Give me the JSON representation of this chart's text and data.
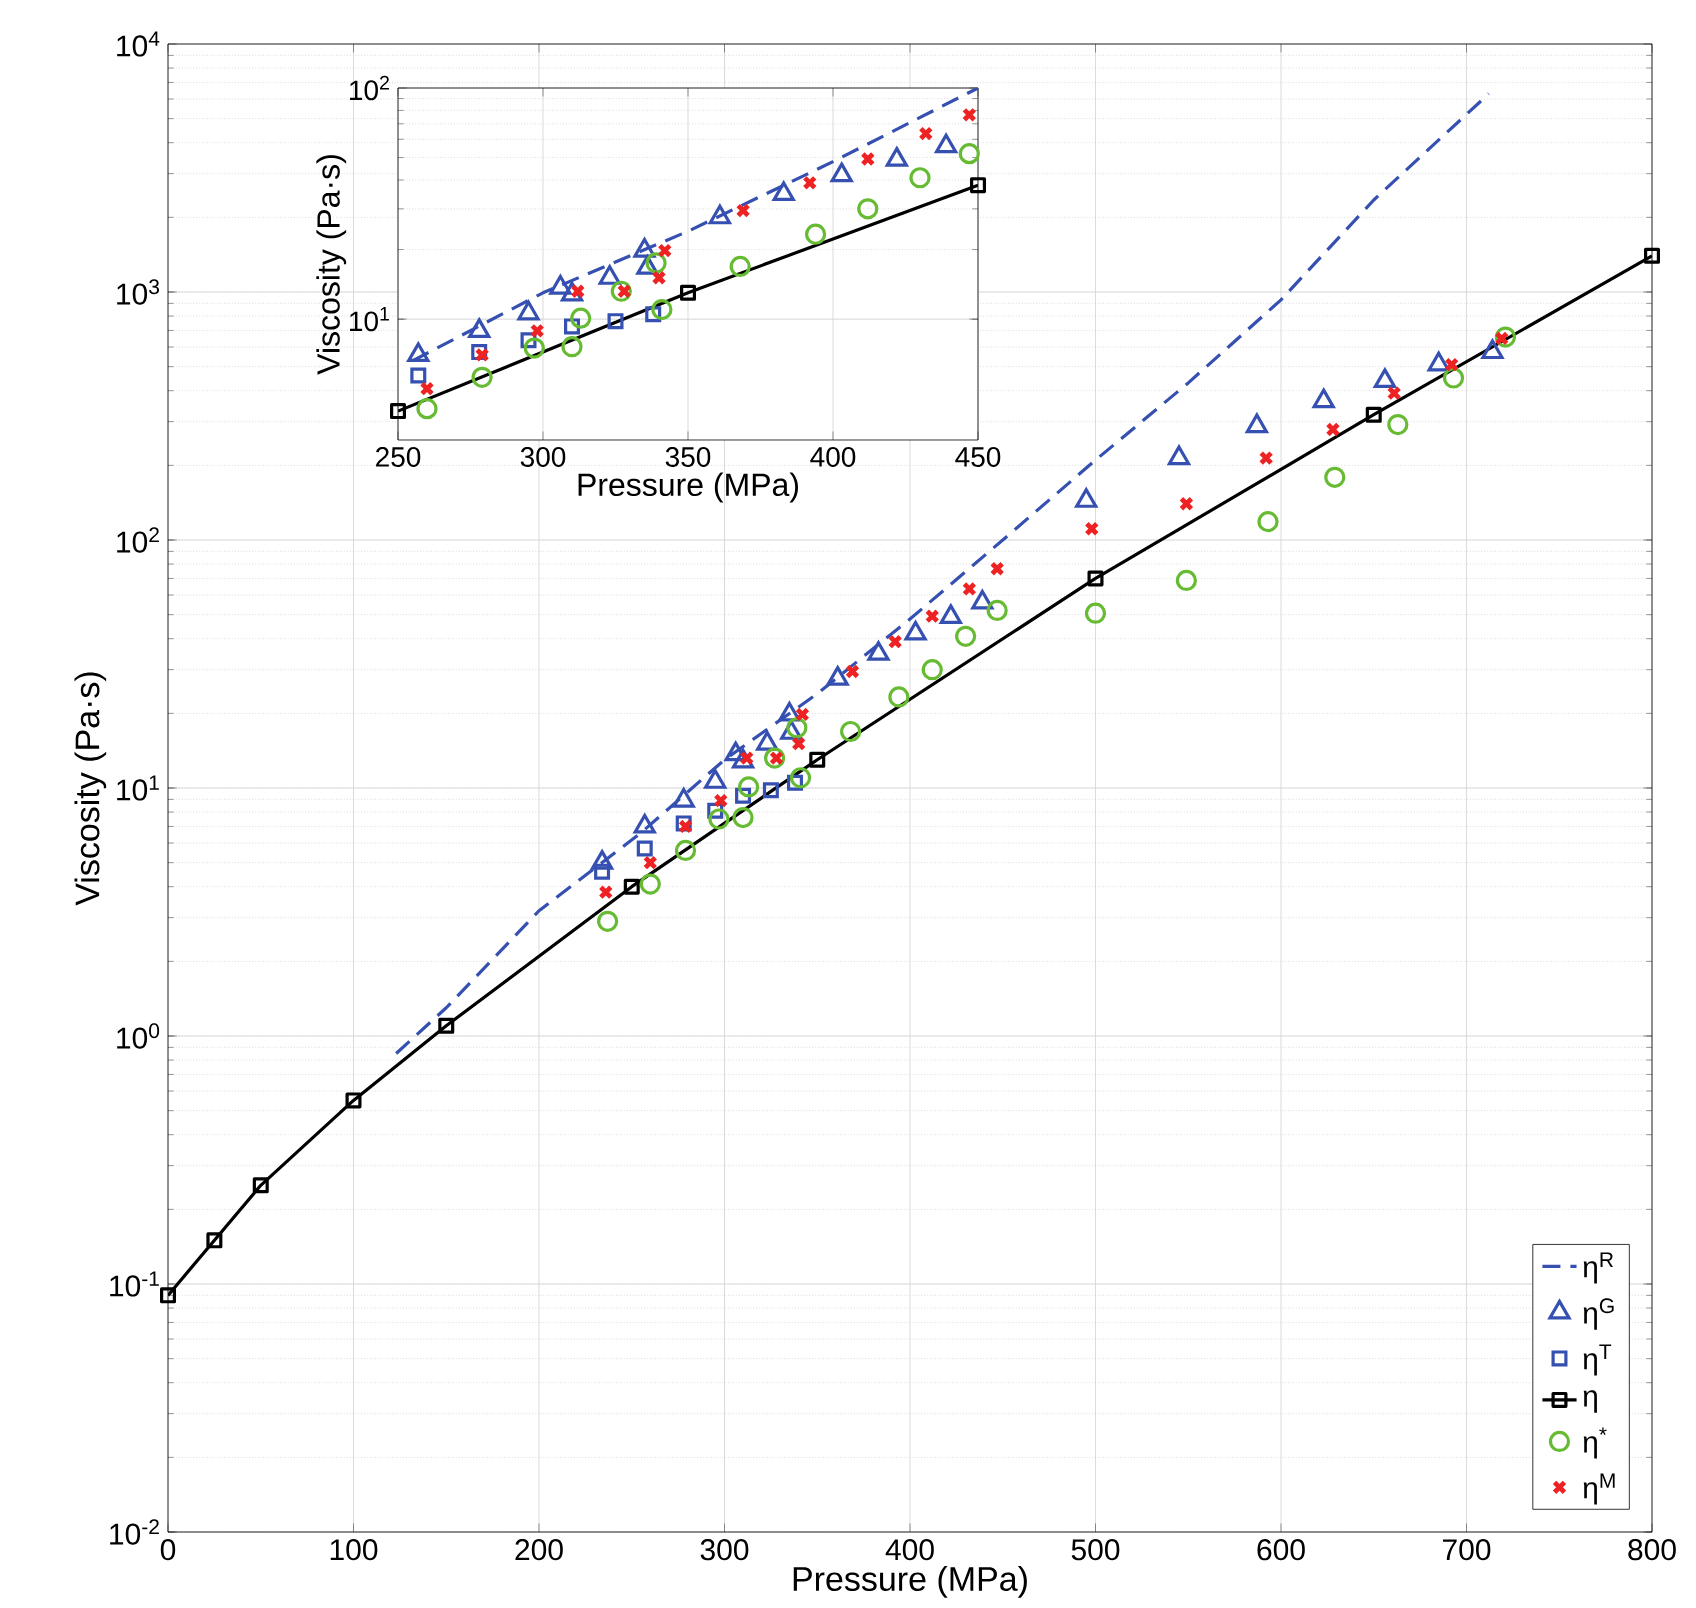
{
  "chart_data": [
    {
      "type": "scatter",
      "xlabel": "Pressure (MPa)",
      "ylabel": "Viscosity (Pa·s)",
      "log": "y",
      "grid": true,
      "legend": "bottom right",
      "xlim": [
        0,
        800
      ],
      "xticks": [
        0,
        100,
        200,
        300,
        400,
        500,
        600,
        700,
        800
      ],
      "ylim": [
        0.01,
        10000
      ],
      "yticks": [
        {
          "value": 0.01,
          "label": "10$^{-2}$"
        },
        {
          "value": 0.1,
          "label": "10$^{-1}$"
        },
        {
          "value": 1,
          "label": "10$^{0}$"
        },
        {
          "value": 10,
          "label": "10$^{1}$"
        },
        {
          "value": 100,
          "label": "10$^{2}$"
        },
        {
          "value": 1000,
          "label": "10$^{3}$"
        },
        {
          "value": 10000,
          "label": "10$^{4}$"
        }
      ],
      "series": [
        {
          "name": "η$^{R}$",
          "type": "line",
          "line_style": "dashed",
          "marker": "none",
          "color": "#3550b0",
          "x": [
            123,
            150,
            200,
            255,
            300,
            350,
            400,
            450,
            500,
            550,
            600,
            650,
            712
          ],
          "values": [
            0.85,
            1.3,
            3.2,
            6.6,
            13,
            24,
            48,
            100,
            210,
            430,
            930,
            2350,
            6300
          ]
        },
        {
          "name": "η$^{G}$",
          "type": "scatter",
          "marker": "triangle",
          "color": "#3550b0",
          "x": [
            234,
            257,
            278,
            295,
            306,
            310,
            323,
            335,
            336,
            361,
            383,
            403,
            422,
            439,
            495,
            545,
            587,
            623,
            656,
            685,
            714
          ],
          "values": [
            5.0,
            7.0,
            8.9,
            10.6,
            13.7,
            12.8,
            15.1,
            19.8,
            16.7,
            27.6,
            34.8,
            42,
            49,
            56,
            144,
            214,
            288,
            363,
            438,
            511,
            573
          ]
        },
        {
          "name": "η$^{T}$",
          "type": "scatter",
          "marker": "square",
          "color": "#3550b0",
          "x": [
            234,
            257,
            278,
            295,
            310,
            325,
            338
          ],
          "values": [
            4.6,
            5.7,
            7.2,
            8.1,
            9.3,
            9.8,
            10.5
          ]
        },
        {
          "name": "η",
          "type": "line",
          "line_style": "solid",
          "marker": "square",
          "color": "#000000",
          "x": [
            0,
            25,
            50,
            100,
            150,
            250,
            350,
            500,
            650,
            800
          ],
          "values": [
            0.09,
            0.15,
            0.25,
            0.55,
            1.1,
            4.0,
            13,
            70,
            320,
            1400
          ]
        },
        {
          "name": "η$^{*}$",
          "type": "scatter",
          "marker": "circle",
          "color": "#66bb33",
          "x": [
            237,
            260,
            279,
            297,
            310,
            313,
            327,
            339,
            341,
            368,
            394,
            412,
            430,
            447,
            500,
            549,
            593,
            629,
            663,
            693,
            721
          ],
          "values": [
            2.9,
            4.1,
            5.6,
            7.5,
            7.6,
            10.1,
            13.2,
            17.5,
            11.0,
            16.9,
            23.3,
            30,
            40.9,
            52,
            50.7,
            68.7,
            118.6,
            179,
            292,
            450,
            658
          ]
        },
        {
          "name": "η$^{M}$",
          "type": "scatter",
          "marker": "cross",
          "color": "#ee2222",
          "x": [
            236,
            260,
            279,
            298,
            312,
            328,
            340,
            342,
            369,
            392,
            412,
            432,
            447,
            498,
            549,
            592,
            628,
            661,
            692,
            719
          ],
          "values": [
            3.8,
            5.0,
            7.0,
            8.9,
            13.2,
            13.2,
            15.1,
            19.8,
            29.5,
            38.9,
            49.3,
            63.5,
            76.6,
            111,
            140,
            214,
            279,
            391,
            510,
            650
          ]
        }
      ]
    },
    {
      "type": "scatter",
      "xlabel": "Pressure (MPa)",
      "ylabel": "Viscosity (Pa·s)",
      "log": "y",
      "grid": true,
      "xlim": [
        250,
        450
      ],
      "xticks": [
        250,
        300,
        350,
        400,
        450
      ],
      "ylim": [
        3,
        100
      ],
      "yticks": [
        {
          "value": 10,
          "label": "10$^{1}$"
        },
        {
          "value": 100,
          "label": "10$^{2}$"
        }
      ],
      "series": [
        {
          "type": "line",
          "line_style": "dashed",
          "marker": "none",
          "color": "#3550b0",
          "x": [
            255,
            300,
            350,
            400,
            450
          ],
          "values": [
            6.6,
            13,
            24,
            48,
            100
          ]
        },
        {
          "type": "scatter",
          "marker": "triangle",
          "color": "#3550b0",
          "x": [
            257,
            278,
            295,
            306,
            310,
            323,
            335,
            336,
            361,
            383,
            403,
            422,
            439
          ],
          "values": [
            7.0,
            8.9,
            10.6,
            13.7,
            12.8,
            15.1,
            19.8,
            16.7,
            27.6,
            34.8,
            42,
            49,
            56
          ]
        },
        {
          "type": "scatter",
          "marker": "square",
          "color": "#3550b0",
          "x": [
            257,
            278,
            295,
            310,
            325,
            338
          ],
          "values": [
            5.7,
            7.2,
            8.1,
            9.3,
            9.8,
            10.5
          ]
        },
        {
          "type": "line",
          "line_style": "solid",
          "marker": "square",
          "color": "#000000",
          "x": [
            250,
            350,
            450
          ],
          "values": [
            4.0,
            13,
            38
          ]
        },
        {
          "type": "scatter",
          "marker": "circle",
          "color": "#66bb33",
          "x": [
            260,
            279,
            297,
            310,
            313,
            327,
            339,
            341,
            368,
            394,
            412,
            430,
            447
          ],
          "values": [
            4.1,
            5.6,
            7.5,
            7.6,
            10.1,
            13.2,
            17.5,
            11.0,
            16.9,
            23.3,
            30,
            40.9,
            52
          ]
        },
        {
          "type": "scatter",
          "marker": "cross",
          "color": "#ee2222",
          "x": [
            260,
            279,
            298,
            312,
            328,
            340,
            342,
            369,
            392,
            412,
            432,
            447
          ],
          "values": [
            5.0,
            7.0,
            8.9,
            13.2,
            13.2,
            15.1,
            19.8,
            29.5,
            38.9,
            49.3,
            63.5,
            76.6
          ]
        }
      ]
    }
  ]
}
